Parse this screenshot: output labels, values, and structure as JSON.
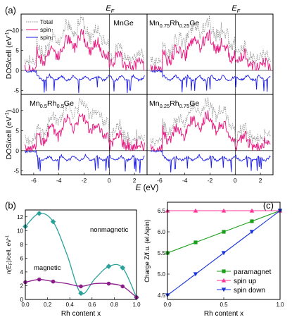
{
  "panel_labels": {
    "a": "(a)",
    "b": "(b)",
    "c": "(c)"
  },
  "colors": {
    "total": "#8c8c8c",
    "spin_up": "#e8127c",
    "spin_down": "#1a1ae6",
    "b_nonmag": "#2aa29a",
    "b_mag": "#8b1a8b",
    "c_para": "#18a018",
    "c_up": "#ff3399",
    "c_down": "#1a33d9"
  },
  "chart_data": [
    {
      "type": "line",
      "panel": "(a)",
      "layout": "2x2 grid, spin-up DOS plotted positive, spin-down DOS plotted negative",
      "fermi_label": "E",
      "fermi_sub": "F",
      "xlabel": "E",
      "xlabel_unit": "(eV)",
      "ylabel": "DOS/cell",
      "ylabel_unit_open": "(eV",
      "ylabel_unit_exp": "-1",
      "ylabel_unit_close": ")",
      "xlim": [
        -7,
        3
      ],
      "ylim": [
        -6,
        14
      ],
      "x_ticks": [
        -6,
        -4,
        -2,
        0,
        2
      ],
      "y_ticks": [
        -5,
        0,
        5,
        10
      ],
      "legend": {
        "total": "Total",
        "spin_up": "spin",
        "spin_up_arrow": "↑",
        "spin_down": "spin",
        "spin_down_arrow": "↓"
      },
      "subplots": [
        {
          "label_parts": [
            {
              "t": "MnGe",
              "sub": false
            }
          ]
        },
        {
          "label_parts": [
            {
              "t": "Mn",
              "sub": false
            },
            {
              "t": "0.75",
              "sub": true
            },
            {
              "t": "Rh",
              "sub": false
            },
            {
              "t": "0.25",
              "sub": true
            },
            {
              "t": "Ge",
              "sub": false
            }
          ]
        },
        {
          "label_parts": [
            {
              "t": "Mn",
              "sub": false
            },
            {
              "t": "0.5",
              "sub": true
            },
            {
              "t": "Rh",
              "sub": false
            },
            {
              "t": "0.5",
              "sub": true
            },
            {
              "t": "Ge",
              "sub": false
            }
          ]
        },
        {
          "label_parts": [
            {
              "t": "Mn",
              "sub": false
            },
            {
              "t": "0.25",
              "sub": true
            },
            {
              "t": "Rh",
              "sub": false
            },
            {
              "t": "0.75",
              "sub": true
            },
            {
              "t": "Ge",
              "sub": false
            }
          ]
        }
      ]
    },
    {
      "type": "line",
      "panel": "(b)",
      "xlabel": "Rh content x",
      "ylabel": "n(E",
      "ylabel_sub": "F",
      "ylabel_rest": ")/cell, eV",
      "ylabel_exp": "-1",
      "xlim": [
        0,
        1
      ],
      "ylim": [
        0,
        13
      ],
      "x_ticks": [
        0.0,
        0.2,
        0.4,
        0.6,
        0.8,
        1.0
      ],
      "y_ticks": [
        0,
        2,
        4,
        6,
        8,
        10,
        12
      ],
      "series": [
        {
          "name": "nonmagnetic",
          "x": [
            0,
            0.125,
            0.25,
            0.375,
            0.5,
            0.625,
            0.75,
            0.875,
            1.0
          ],
          "y": [
            10.6,
            12.5,
            11.3,
            6.5,
            0.9,
            3.0,
            4.8,
            4.6,
            0.3
          ],
          "points_x": [
            0,
            0.125,
            0.25,
            0.5,
            0.75,
            0.875,
            1.0
          ],
          "points_y": [
            10.6,
            12.5,
            11.3,
            0.9,
            4.8,
            4.6,
            0.3
          ]
        },
        {
          "name": "magnetic",
          "x": [
            0,
            0.125,
            0.25,
            0.375,
            0.5,
            0.625,
            0.75,
            0.875,
            1.0
          ],
          "y": [
            2.5,
            2.9,
            2.6,
            2.3,
            1.9,
            2.3,
            2.3,
            1.9,
            0.3
          ],
          "points_x": [
            0,
            0.125,
            0.25,
            0.5,
            0.75,
            0.875,
            1.0
          ],
          "points_y": [
            2.5,
            2.9,
            2.6,
            1.9,
            2.3,
            1.9,
            0.3
          ]
        }
      ]
    },
    {
      "type": "line",
      "panel": "(c)",
      "xlabel": "Rh content x",
      "ylabel": "Charge Z/f.u. (el./spin)",
      "xlim": [
        0,
        1
      ],
      "ylim": [
        4.4,
        6.7
      ],
      "x_ticks": [
        0.0,
        0.5,
        1.0
      ],
      "y_ticks": [
        4.5,
        5.0,
        5.5,
        6.0,
        6.5
      ],
      "series": [
        {
          "name": "paramagnet",
          "marker": "square",
          "x": [
            0,
            0.25,
            0.5,
            0.75,
            1.0
          ],
          "y": [
            5.5,
            5.75,
            6.0,
            6.25,
            6.5
          ]
        },
        {
          "name": "spin up",
          "marker": "triangle-up",
          "x": [
            0,
            0.25,
            0.5,
            0.75,
            1.0
          ],
          "y": [
            6.5,
            6.5,
            6.5,
            6.5,
            6.5
          ]
        },
        {
          "name": "spin down",
          "marker": "triangle-down",
          "x": [
            0,
            0.25,
            0.5,
            0.75,
            1.0
          ],
          "y": [
            4.5,
            5.0,
            5.5,
            6.0,
            6.5
          ]
        }
      ]
    }
  ]
}
